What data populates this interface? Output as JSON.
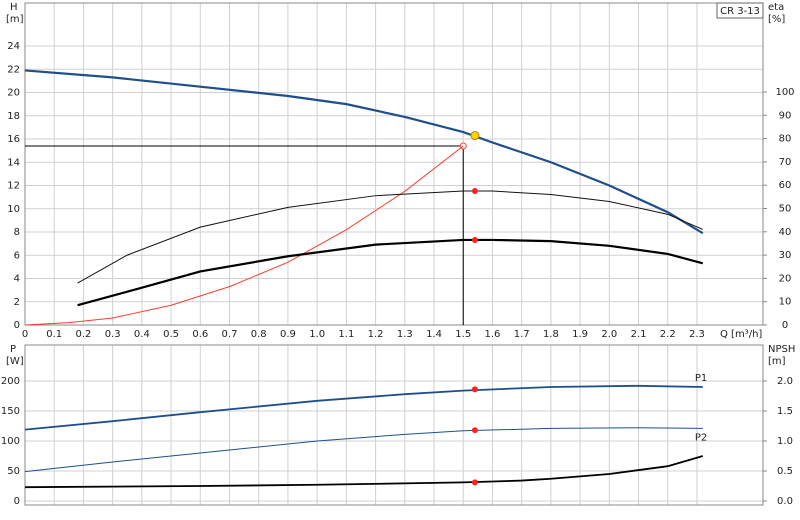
{
  "chart_data": [
    {
      "type": "line",
      "title": "CR 3-13",
      "y_label": "H",
      "y_unit": "[m]",
      "y2_label": "eta",
      "y2_unit": "[%]",
      "x_label": "Q [m³/h]",
      "xlim": [
        0,
        2.526
      ],
      "ylim": [
        0,
        27.7
      ],
      "y2lim": [
        0,
        138.2
      ],
      "grid": true,
      "xticks": [
        0,
        0.1,
        0.2,
        0.3,
        0.4,
        0.5,
        0.6,
        0.7,
        0.8,
        0.9,
        {
          "value": 1,
          "label": "1.0"
        },
        1.1,
        1.2,
        1.3,
        1.4,
        1.5,
        1.6,
        1.7,
        1.8,
        1.9,
        {
          "value": 2,
          "label": "2.0"
        },
        2.1,
        2.2,
        2.3
      ],
      "yticks": [
        0,
        2,
        4,
        6,
        8,
        10,
        12,
        14,
        16,
        18,
        20,
        22,
        24
      ],
      "y2ticks": [
        0,
        10,
        20,
        30,
        40,
        50,
        60,
        70,
        80,
        90,
        100
      ],
      "duty_point": {
        "x": 1.5,
        "y": 15.4
      },
      "series": [
        {
          "color": "#1f4e8c",
          "width": 2.2,
          "x": [
            0,
            0.3,
            0.6,
            0.9,
            1.1,
            1.3,
            1.5,
            1.6,
            1.8,
            2.0,
            2.2,
            2.32
          ],
          "values": [
            21.9,
            21.3,
            20.5,
            19.7,
            19.0,
            17.9,
            16.6,
            15.7,
            14.0,
            12.0,
            9.7,
            7.9
          ]
        },
        {
          "color": "#ff3b30",
          "width": 1,
          "x": [
            0,
            0.15,
            0.3,
            0.5,
            0.7,
            0.9,
            1.1,
            1.3,
            1.5
          ],
          "values": [
            0,
            0.2,
            0.6,
            1.7,
            3.3,
            5.4,
            8.2,
            11.5,
            15.4
          ]
        },
        {
          "color": "#111111",
          "width": 1,
          "axis": "y2",
          "x": [
            0.18,
            0.35,
            0.6,
            0.9,
            1.2,
            1.5,
            1.6,
            1.8,
            2.0,
            2.2,
            2.32
          ],
          "values": [
            18,
            30,
            42,
            50.5,
            55.5,
            57.5,
            57.5,
            56,
            53,
            47.5,
            41
          ]
        },
        {
          "color": "#000000",
          "width": 2.2,
          "axis": "y2",
          "x": [
            0.18,
            0.4,
            0.6,
            0.9,
            1.2,
            1.5,
            1.6,
            1.8,
            2.0,
            2.2,
            2.32
          ],
          "values": [
            8.5,
            16,
            23,
            29.5,
            34.5,
            36.5,
            36.5,
            36,
            34,
            30.5,
            26.5
          ]
        }
      ],
      "markers": [
        {
          "color": "#ffd400",
          "x": 1.54,
          "y": 16.3
        },
        {
          "color": "#ff2020",
          "x": 1.54,
          "y": 57.5,
          "axis": "y2"
        },
        {
          "color": "#ff2020",
          "x": 1.54,
          "y": 36.5,
          "axis": "y2"
        }
      ]
    },
    {
      "type": "line",
      "y_label": "P",
      "y_unit": "[W]",
      "y2_label": "NPSH",
      "y2_unit": "[m]",
      "xlim": [
        0,
        2.526
      ],
      "ylim": [
        -6.7,
        260
      ],
      "y2lim": [
        -0.067,
        2.6
      ],
      "grid": true,
      "yticks": [
        0,
        50,
        100,
        150,
        200
      ],
      "y2ticks": [
        {
          "value": 0,
          "label": "0.0"
        },
        0.5,
        {
          "value": 1,
          "label": "1.0"
        },
        1.5,
        {
          "value": 2,
          "label": "2.0"
        }
      ],
      "series": [
        {
          "name": "P1",
          "color": "#1f4e8c",
          "width": 1.8,
          "x": [
            0,
            0.3,
            0.6,
            1.0,
            1.3,
            1.5,
            1.8,
            2.1,
            2.32
          ],
          "values": [
            119,
            133,
            148,
            167,
            178,
            184,
            190,
            192,
            190
          ]
        },
        {
          "name": "P2",
          "color": "#1f4e8c",
          "width": 1,
          "x": [
            0,
            0.3,
            0.6,
            1.0,
            1.3,
            1.5,
            1.8,
            2.1,
            2.32
          ],
          "values": [
            49,
            65,
            80,
            100,
            111,
            117,
            121,
            122,
            121
          ]
        },
        {
          "color": "#000000",
          "width": 1.8,
          "axis": "y2",
          "x": [
            0,
            0.6,
            1.0,
            1.5,
            1.7,
            1.8,
            2.0,
            2.2,
            2.32
          ],
          "values": [
            0.23,
            0.25,
            0.27,
            0.31,
            0.34,
            0.37,
            0.45,
            0.58,
            0.75
          ]
        }
      ],
      "markers": [
        {
          "color": "#ff2020",
          "x": 1.54,
          "y": 186
        },
        {
          "color": "#ff2020",
          "x": 1.54,
          "y": 118
        },
        {
          "color": "#ff2020",
          "x": 1.54,
          "y": 0.31,
          "axis": "y2"
        }
      ]
    }
  ]
}
